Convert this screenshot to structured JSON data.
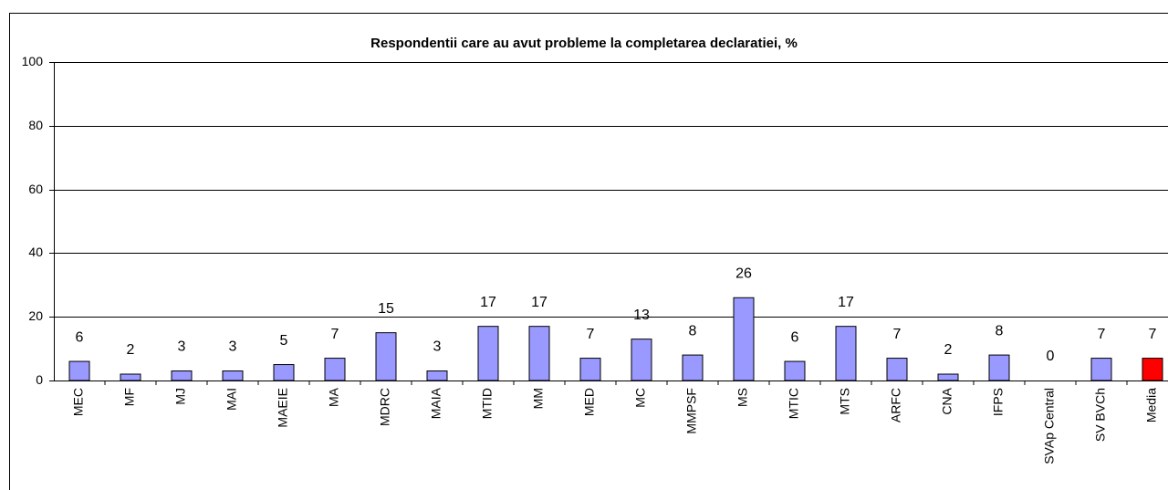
{
  "chart_data": {
    "type": "bar",
    "title": "Respondentii care au avut probleme la completarea declaratiei, %",
    "categories": [
      "MEC",
      "MF",
      "MJ",
      "MAI",
      "MAEIE",
      "MA",
      "MDRC",
      "MAIA",
      "MTID",
      "MM",
      "MED",
      "MC",
      "MMPSF",
      "MS",
      "MTIC",
      "MTS",
      "ARFC",
      "CNA",
      "IFPS",
      "SVAp Central",
      "SV BVCh",
      "Media"
    ],
    "values": [
      6,
      2,
      3,
      3,
      5,
      7,
      15,
      3,
      17,
      17,
      7,
      13,
      8,
      26,
      6,
      17,
      7,
      2,
      8,
      0,
      7,
      7
    ],
    "colors": [
      "#9999ff",
      "#9999ff",
      "#9999ff",
      "#9999ff",
      "#9999ff",
      "#9999ff",
      "#9999ff",
      "#9999ff",
      "#9999ff",
      "#9999ff",
      "#9999ff",
      "#9999ff",
      "#9999ff",
      "#9999ff",
      "#9999ff",
      "#9999ff",
      "#9999ff",
      "#9999ff",
      "#9999ff",
      "#9999ff",
      "#9999ff",
      "#ff0000"
    ],
    "ylim": [
      0,
      100
    ],
    "yticks": [
      0,
      20,
      40,
      60,
      80,
      100
    ],
    "grid": true
  }
}
